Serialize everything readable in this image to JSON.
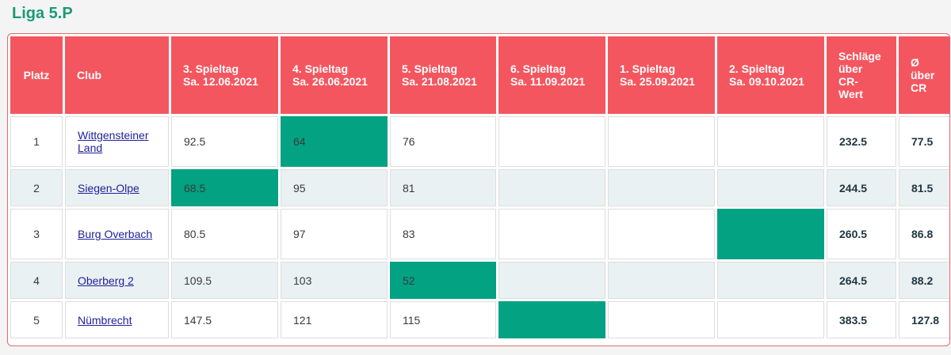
{
  "page": {
    "title": "Liga 5.P"
  },
  "table": {
    "headers": {
      "platz": "Platz",
      "club": "Club",
      "sp3": {
        "line1": "3. Spieltag",
        "line2": "Sa. 12.06.2021"
      },
      "sp4": {
        "line1": "4. Spieltag",
        "line2": "Sa. 26.06.2021"
      },
      "sp5": {
        "line1": "5. Spieltag",
        "line2": "Sa. 21.08.2021"
      },
      "sp6": {
        "line1": "6. Spieltag",
        "line2": "Sa. 11.09.2021"
      },
      "sp1": {
        "line1": "1. Spieltag",
        "line2": "Sa. 25.09.2021"
      },
      "sp2": {
        "line1": "2. Spieltag",
        "line2": "Sa. 09.10.2021"
      },
      "schlaege": {
        "l1": "Schläge",
        "l2": "über",
        "l3": "CR-",
        "l4": "Wert"
      },
      "avg": {
        "l1": "Ø",
        "l2": "über",
        "l3": "CR"
      }
    },
    "rows": [
      {
        "platz": "1",
        "club": "Wittgensteiner Land",
        "sp3": "92.5",
        "sp4": "64",
        "sp5": "76",
        "sp6": "",
        "sp1": "",
        "sp2": "",
        "total": "232.5",
        "avg": "77.5"
      },
      {
        "platz": "2",
        "club": "Siegen-Olpe",
        "sp3": "68.5",
        "sp4": "95",
        "sp5": "81",
        "sp6": "",
        "sp1": "",
        "sp2": "",
        "total": "244.5",
        "avg": "81.5"
      },
      {
        "platz": "3",
        "club": "Burg Overbach",
        "sp3": "80.5",
        "sp4": "97",
        "sp5": "83",
        "sp6": "",
        "sp1": "",
        "sp2": "",
        "total": "260.5",
        "avg": "86.8"
      },
      {
        "platz": "4",
        "club": "Oberberg 2",
        "sp3": "109.5",
        "sp4": "103",
        "sp5": "52",
        "sp6": "",
        "sp1": "",
        "sp2": "",
        "total": "264.5",
        "avg": "88.2"
      },
      {
        "platz": "5",
        "club": "Nümbrecht",
        "sp3": "147.5",
        "sp4": "121",
        "sp5": "115",
        "sp6": "",
        "sp1": "",
        "sp2": "",
        "total": "383.5",
        "avg": "127.8"
      }
    ]
  },
  "colors": {
    "title": "#1b9a77",
    "header_bg": "#f4565f",
    "highlight": "#03a282",
    "row_alt": "#eaf1f3"
  }
}
